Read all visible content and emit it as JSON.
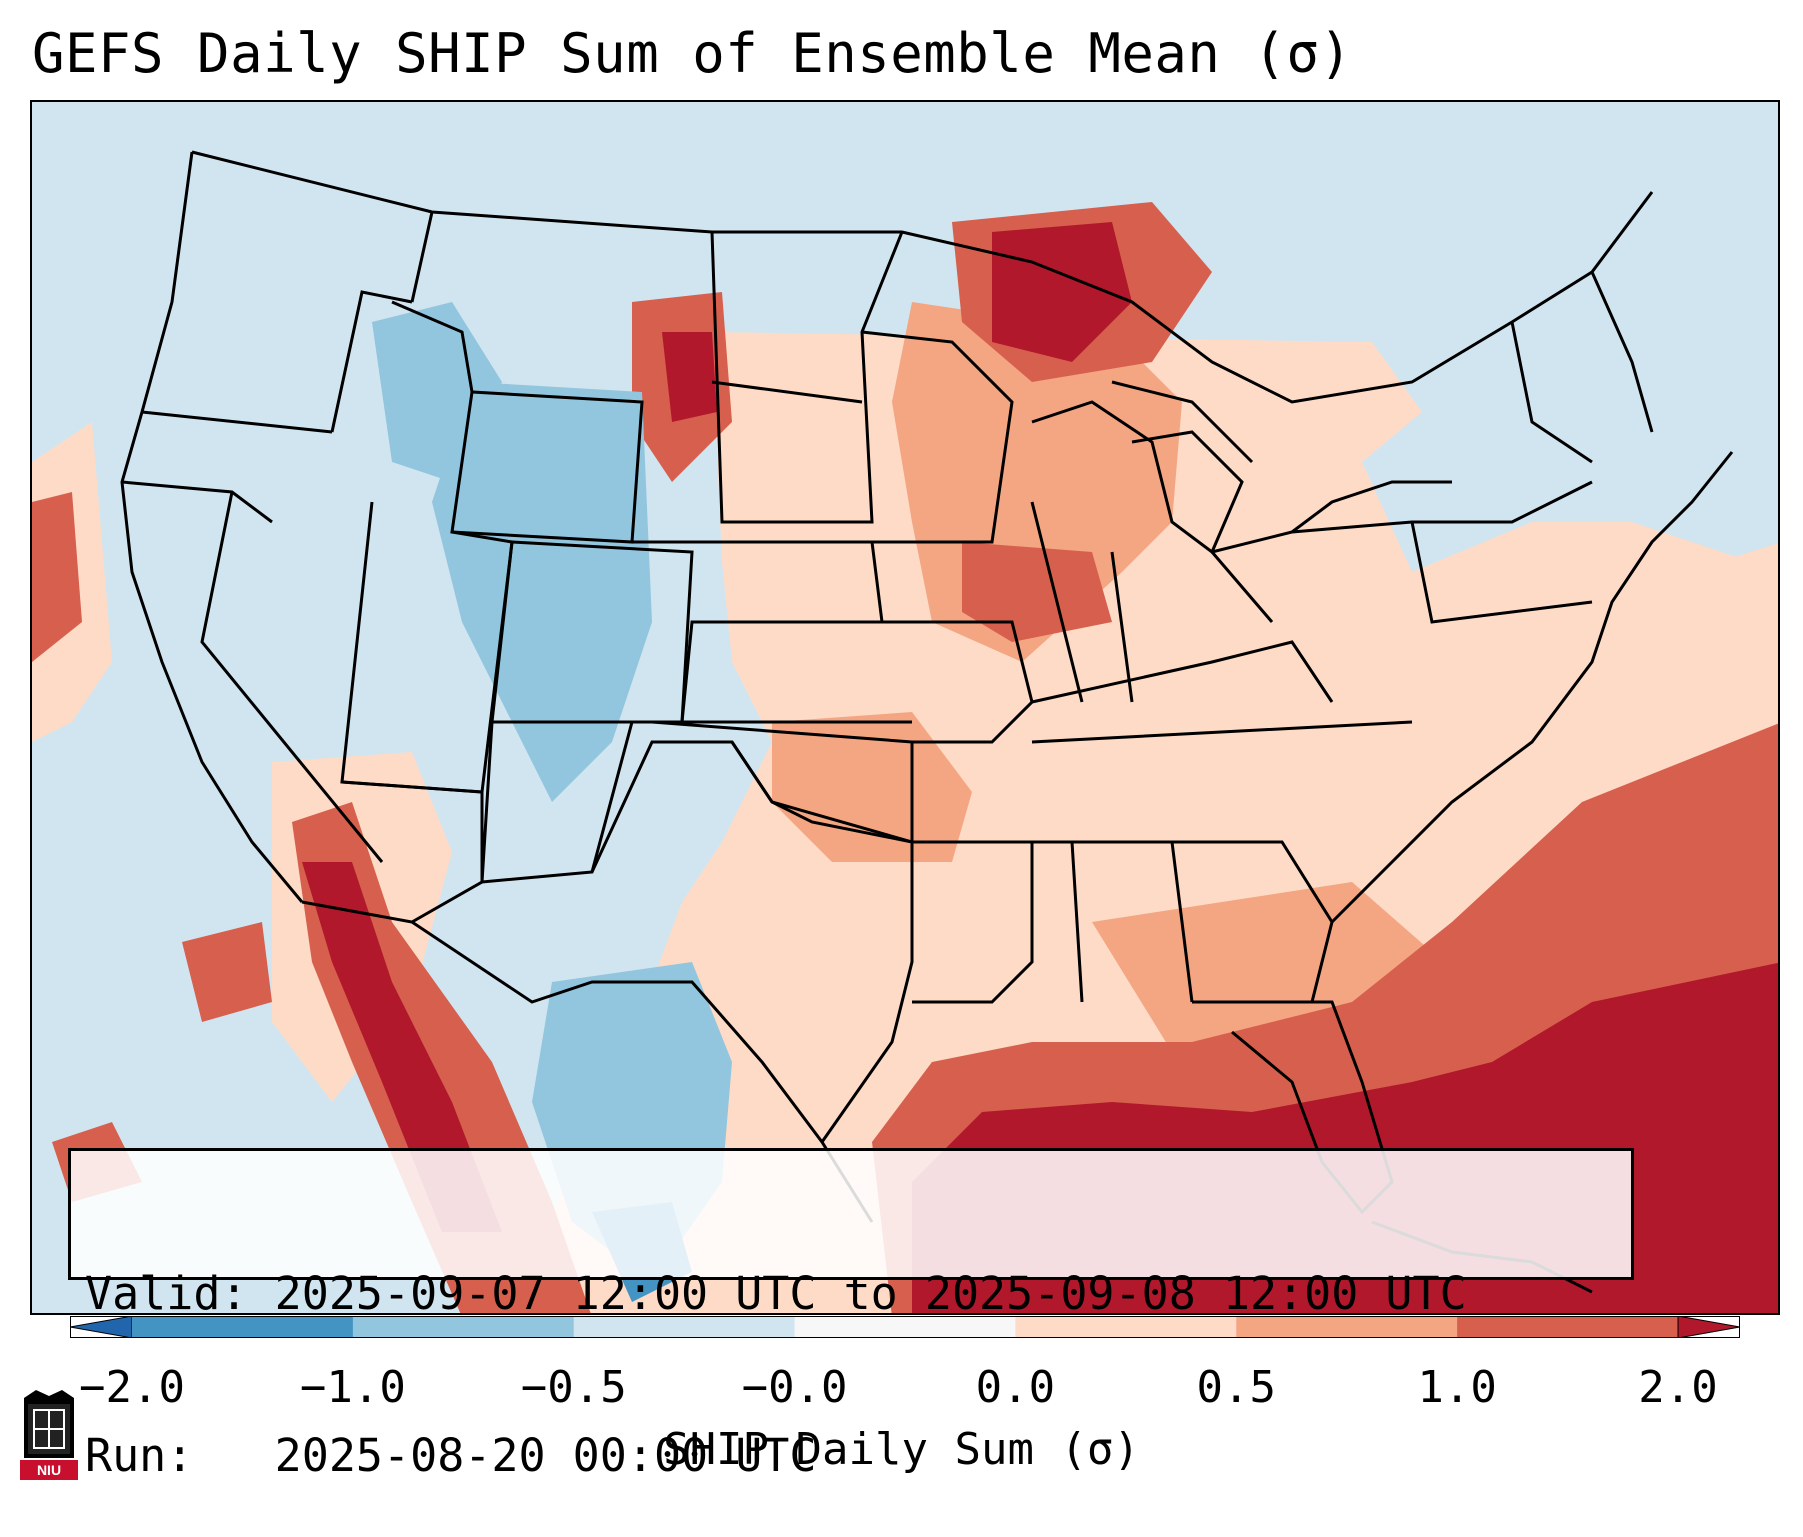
{
  "title": "GEFS Daily SHIP Sum of Ensemble Mean (σ)",
  "info": {
    "valid": "Valid: 2025-09-07 12:00 UTC to 2025-09-08 12:00 UTC",
    "run": "Run:   2025-08-20 00:00 UTC"
  },
  "colorbar": {
    "label": "SHIP Daily Sum (σ)",
    "ticks": [
      "−2.0",
      "−1.0",
      "−0.5",
      "−0.0",
      "0.0",
      "0.5",
      "1.0",
      "2.0"
    ],
    "colors": [
      "#4393c3",
      "#92c5de",
      "#d1e5f0",
      "#f7f7f7",
      "#fddbc7",
      "#f4a582",
      "#d6604d",
      "#b2182b"
    ],
    "extend_low_color": "#2166ac",
    "extend_high_color": "#b2182b"
  },
  "logo": {
    "text": "NIU",
    "color": "#c8102e"
  },
  "map_field": {
    "region": "Contiguous United States",
    "levels_sigma": [
      -2.0,
      -1.0,
      -0.5,
      0.0,
      0.5,
      1.0,
      2.0
    ],
    "patterns": [
      {
        "area": "Gulf of Mexico / Western Atlantic",
        "category": "above 1.0 σ"
      },
      {
        "area": "Great Lakes / Upper Midwest",
        "category": "0.5 to 2.0 σ"
      },
      {
        "area": "Northern High Plains",
        "category": "1.0 to 2.0 σ"
      },
      {
        "area": "Rocky Mountains / Southwest",
        "category": "-1.0 to -0.5 σ"
      },
      {
        "area": "Pacific Northwest / Northeast",
        "category": "-0.5 to 0.0 σ"
      },
      {
        "area": "Southern Plains / Mississippi Valley",
        "category": "0.0 to 0.5 σ"
      },
      {
        "area": "Baja California / Gulf of California",
        "category": "1.0 to 2.0 σ"
      }
    ]
  }
}
